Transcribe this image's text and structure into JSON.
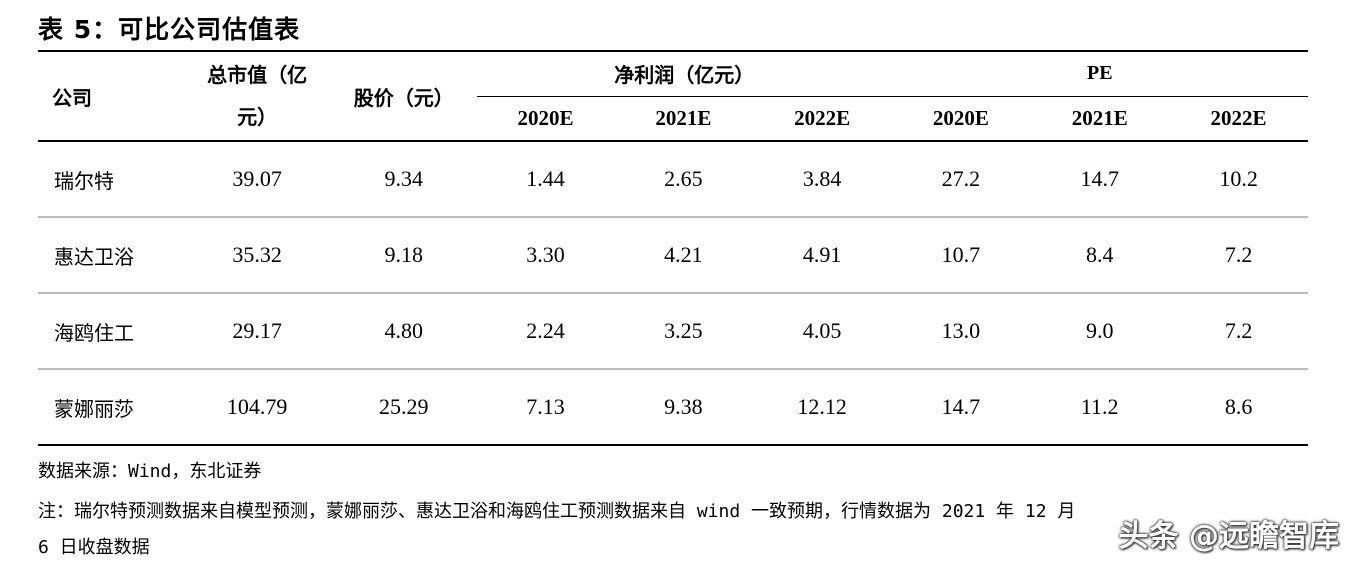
{
  "title": "表 5：可比公司估值表",
  "table": {
    "headers": {
      "company": "公司",
      "market_cap_line1": "总市值（亿",
      "market_cap_line2": "元）",
      "price": "股价（元）",
      "net_profit": "净利润（亿元）",
      "pe": "PE",
      "years": [
        "2020E",
        "2021E",
        "2022E",
        "2020E",
        "2021E",
        "2022E"
      ]
    },
    "rows": [
      {
        "company": "瑞尔特",
        "market_cap": "39.07",
        "price": "9.34",
        "np_2020": "1.44",
        "np_2021": "2.65",
        "np_2022": "3.84",
        "pe_2020": "27.2",
        "pe_2021": "14.7",
        "pe_2022": "10.2"
      },
      {
        "company": "惠达卫浴",
        "market_cap": "35.32",
        "price": "9.18",
        "np_2020": "3.30",
        "np_2021": "4.21",
        "np_2022": "4.91",
        "pe_2020": "10.7",
        "pe_2021": "8.4",
        "pe_2022": "7.2"
      },
      {
        "company": "海鸥住工",
        "market_cap": "29.17",
        "price": "4.80",
        "np_2020": "2.24",
        "np_2021": "3.25",
        "np_2022": "4.05",
        "pe_2020": "13.0",
        "pe_2021": "9.0",
        "pe_2022": "7.2"
      },
      {
        "company": "蒙娜丽莎",
        "market_cap": "104.79",
        "price": "25.29",
        "np_2020": "7.13",
        "np_2021": "9.38",
        "np_2022": "12.12",
        "pe_2020": "14.7",
        "pe_2021": "11.2",
        "pe_2022": "8.6"
      }
    ]
  },
  "notes": {
    "source": "数据来源：Wind，东北证券",
    "note_line1": "注：瑞尔特预测数据来自模型预测，蒙娜丽莎、惠达卫浴和海鸥住工预测数据来自 wind 一致预期，行情数据为 2021 年 12 月",
    "note_line2": "6 日收盘数据"
  },
  "watermark": "头条 @远瞻智库"
}
